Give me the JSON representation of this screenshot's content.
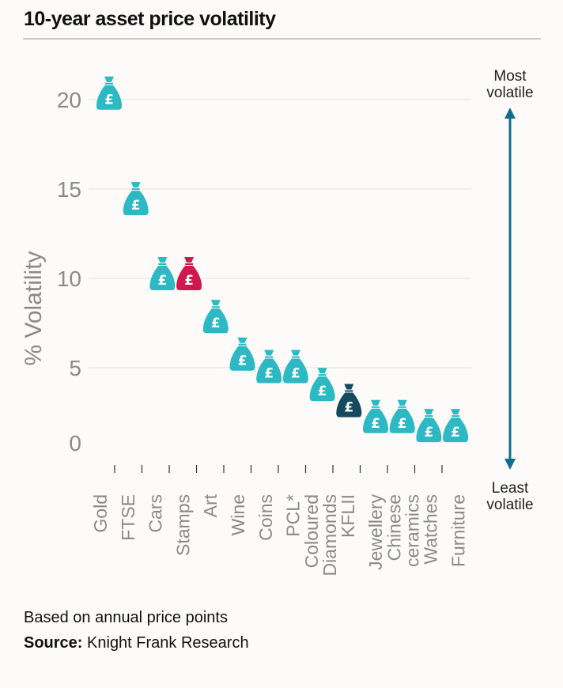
{
  "chart_data": {
    "type": "scatter",
    "title": "10-year asset price volatility",
    "ylabel": "% Volatility",
    "ylim": [
      0,
      20
    ],
    "yticks": [
      0,
      5,
      10,
      15,
      20
    ],
    "grid": true,
    "marker": "money-bag-pound-icon",
    "categories": [
      "Gold",
      "FTSE",
      "Cars",
      "Stamps",
      "Art",
      "Wine",
      "Coins",
      "PCL*",
      "Coloured Diamonds",
      "KFLII",
      "Jewellery",
      "Chinese ceramics",
      "Watches",
      "Furniture"
    ],
    "values": [
      20.1,
      14.2,
      10.0,
      10.0,
      7.6,
      5.5,
      4.8,
      4.8,
      3.8,
      2.9,
      2.0,
      2.0,
      1.5,
      1.5
    ],
    "colors": [
      "#2db9c3",
      "#2db9c3",
      "#2db9c3",
      "#d0174f",
      "#2db9c3",
      "#2db9c3",
      "#2db9c3",
      "#2db9c3",
      "#2db9c3",
      "#154a5e",
      "#2db9c3",
      "#2db9c3",
      "#2db9c3",
      "#2db9c3"
    ],
    "annotations": {
      "top": "Most volatile",
      "bottom": "Least volatile",
      "arrow_color": "#0e6d91"
    }
  },
  "footer": {
    "note": "Based on annual price points",
    "source_label": "Source:",
    "source": "Knight Frank Research"
  }
}
